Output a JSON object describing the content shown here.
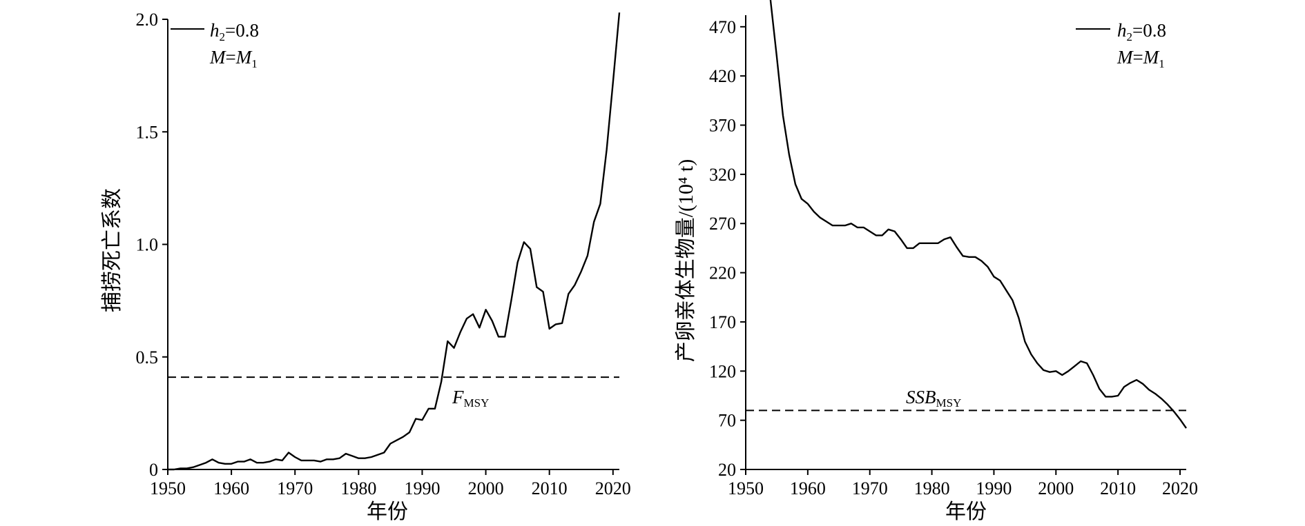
{
  "chart_data": [
    {
      "type": "line",
      "xlabel": "年份",
      "ylabel": "捕捞死亡系数",
      "xlim": [
        1950,
        2021
      ],
      "ylim": [
        0,
        2.0
      ],
      "xticks": [
        "1950",
        "1960",
        "1970",
        "1980",
        "1990",
        "2000",
        "2010",
        "2020"
      ],
      "yticks": [
        "0",
        "0.5",
        "1.0",
        "1.5",
        "2.0"
      ],
      "legend": {
        "position": "top-left",
        "line1_italic": "h",
        "line1_sub": "2",
        "line1_rest": "=0.8",
        "line2_italic": "M",
        "line2_eq": "=",
        "line2_italic2": "M",
        "line2_sub": "1"
      },
      "reference": {
        "value": 0.41,
        "label": "F",
        "label_sub": "MSY"
      },
      "series": [
        {
          "x": [
            1950,
            1951,
            1952,
            1953,
            1954,
            1955,
            1956,
            1957,
            1958,
            1959,
            1960,
            1961,
            1962,
            1963,
            1964,
            1965,
            1966,
            1967,
            1968,
            1969,
            1970,
            1971,
            1972,
            1973,
            1974,
            1975,
            1976,
            1977,
            1978,
            1979,
            1980,
            1981,
            1982,
            1983,
            1984,
            1985,
            1986,
            1987,
            1988,
            1989,
            1990,
            1991,
            1992,
            1993,
            1994,
            1995,
            1996,
            1997,
            1998,
            1999,
            2000,
            2001,
            2002,
            2003,
            2004,
            2005,
            2006,
            2007,
            2008,
            2009,
            2010,
            2011,
            2012,
            2013,
            2014,
            2015,
            2016,
            2017,
            2018,
            2019,
            2020,
            2021
          ],
          "values": [
            0.0,
            0.0,
            0.005,
            0.005,
            0.01,
            0.02,
            0.03,
            0.045,
            0.03,
            0.025,
            0.025,
            0.035,
            0.035,
            0.045,
            0.03,
            0.03,
            0.035,
            0.045,
            0.04,
            0.075,
            0.055,
            0.04,
            0.04,
            0.04,
            0.035,
            0.045,
            0.045,
            0.05,
            0.07,
            0.06,
            0.05,
            0.05,
            0.055,
            0.065,
            0.075,
            0.115,
            0.13,
            0.145,
            0.165,
            0.225,
            0.22,
            0.27,
            0.27,
            0.39,
            0.57,
            0.54,
            0.61,
            0.67,
            0.69,
            0.63,
            0.71,
            0.66,
            0.59,
            0.59,
            0.75,
            0.92,
            1.01,
            0.98,
            0.81,
            0.79,
            0.625,
            0.645,
            0.65,
            0.78,
            0.82,
            0.88,
            0.95,
            1.1,
            1.18,
            1.42,
            1.72,
            2.03
          ]
        }
      ]
    },
    {
      "type": "line",
      "xlabel": "年份",
      "ylabel": "产卵亲体生物量/(10⁴ t)",
      "xlim": [
        1950,
        2021
      ],
      "ylim": [
        20,
        500
      ],
      "xticks": [
        "1950",
        "1960",
        "1970",
        "1980",
        "1990",
        "2000",
        "2010",
        "2020"
      ],
      "yticks": [
        "20",
        "70",
        "120",
        "170",
        "220",
        "270",
        "320",
        "370",
        "420",
        "470"
      ],
      "legend": {
        "position": "top-right",
        "line1_italic": "h",
        "line1_sub": "2",
        "line1_rest": "=0.8",
        "line2_italic": "M",
        "line2_eq": "=",
        "line2_italic2": "M",
        "line2_sub": "1"
      },
      "reference": {
        "value": 80,
        "label": "SSB",
        "label_sub": "MSY"
      },
      "series": [
        {
          "x": [
            1954,
            1955,
            1956,
            1957,
            1958,
            1959,
            1960,
            1961,
            1962,
            1963,
            1964,
            1965,
            1966,
            1967,
            1968,
            1969,
            1970,
            1971,
            1972,
            1973,
            1974,
            1975,
            1976,
            1977,
            1978,
            1979,
            1980,
            1981,
            1982,
            1983,
            1984,
            1985,
            1986,
            1987,
            1988,
            1989,
            1990,
            1991,
            1992,
            1993,
            1994,
            1995,
            1996,
            1997,
            1998,
            1999,
            2000,
            2001,
            2002,
            2003,
            2004,
            2005,
            2006,
            2007,
            2008,
            2009,
            2010,
            2011,
            2012,
            2013,
            2014,
            2015,
            2016,
            2017,
            2018,
            2019,
            2020,
            2021
          ],
          "values": [
            500,
            440,
            380,
            340,
            310,
            295,
            290,
            282,
            276,
            272,
            268,
            268,
            268,
            270,
            266,
            266,
            262,
            258,
            258,
            264,
            262,
            254,
            245,
            245,
            250,
            250,
            250,
            250,
            254,
            256,
            246,
            237,
            236,
            236,
            232,
            226,
            216,
            212,
            202,
            192,
            174,
            150,
            137,
            128,
            121,
            119,
            120,
            116,
            120,
            125,
            130,
            128,
            116,
            102,
            94,
            94,
            95,
            104,
            108,
            111,
            107,
            101,
            97,
            92,
            86,
            79,
            71,
            62
          ]
        }
      ]
    }
  ]
}
